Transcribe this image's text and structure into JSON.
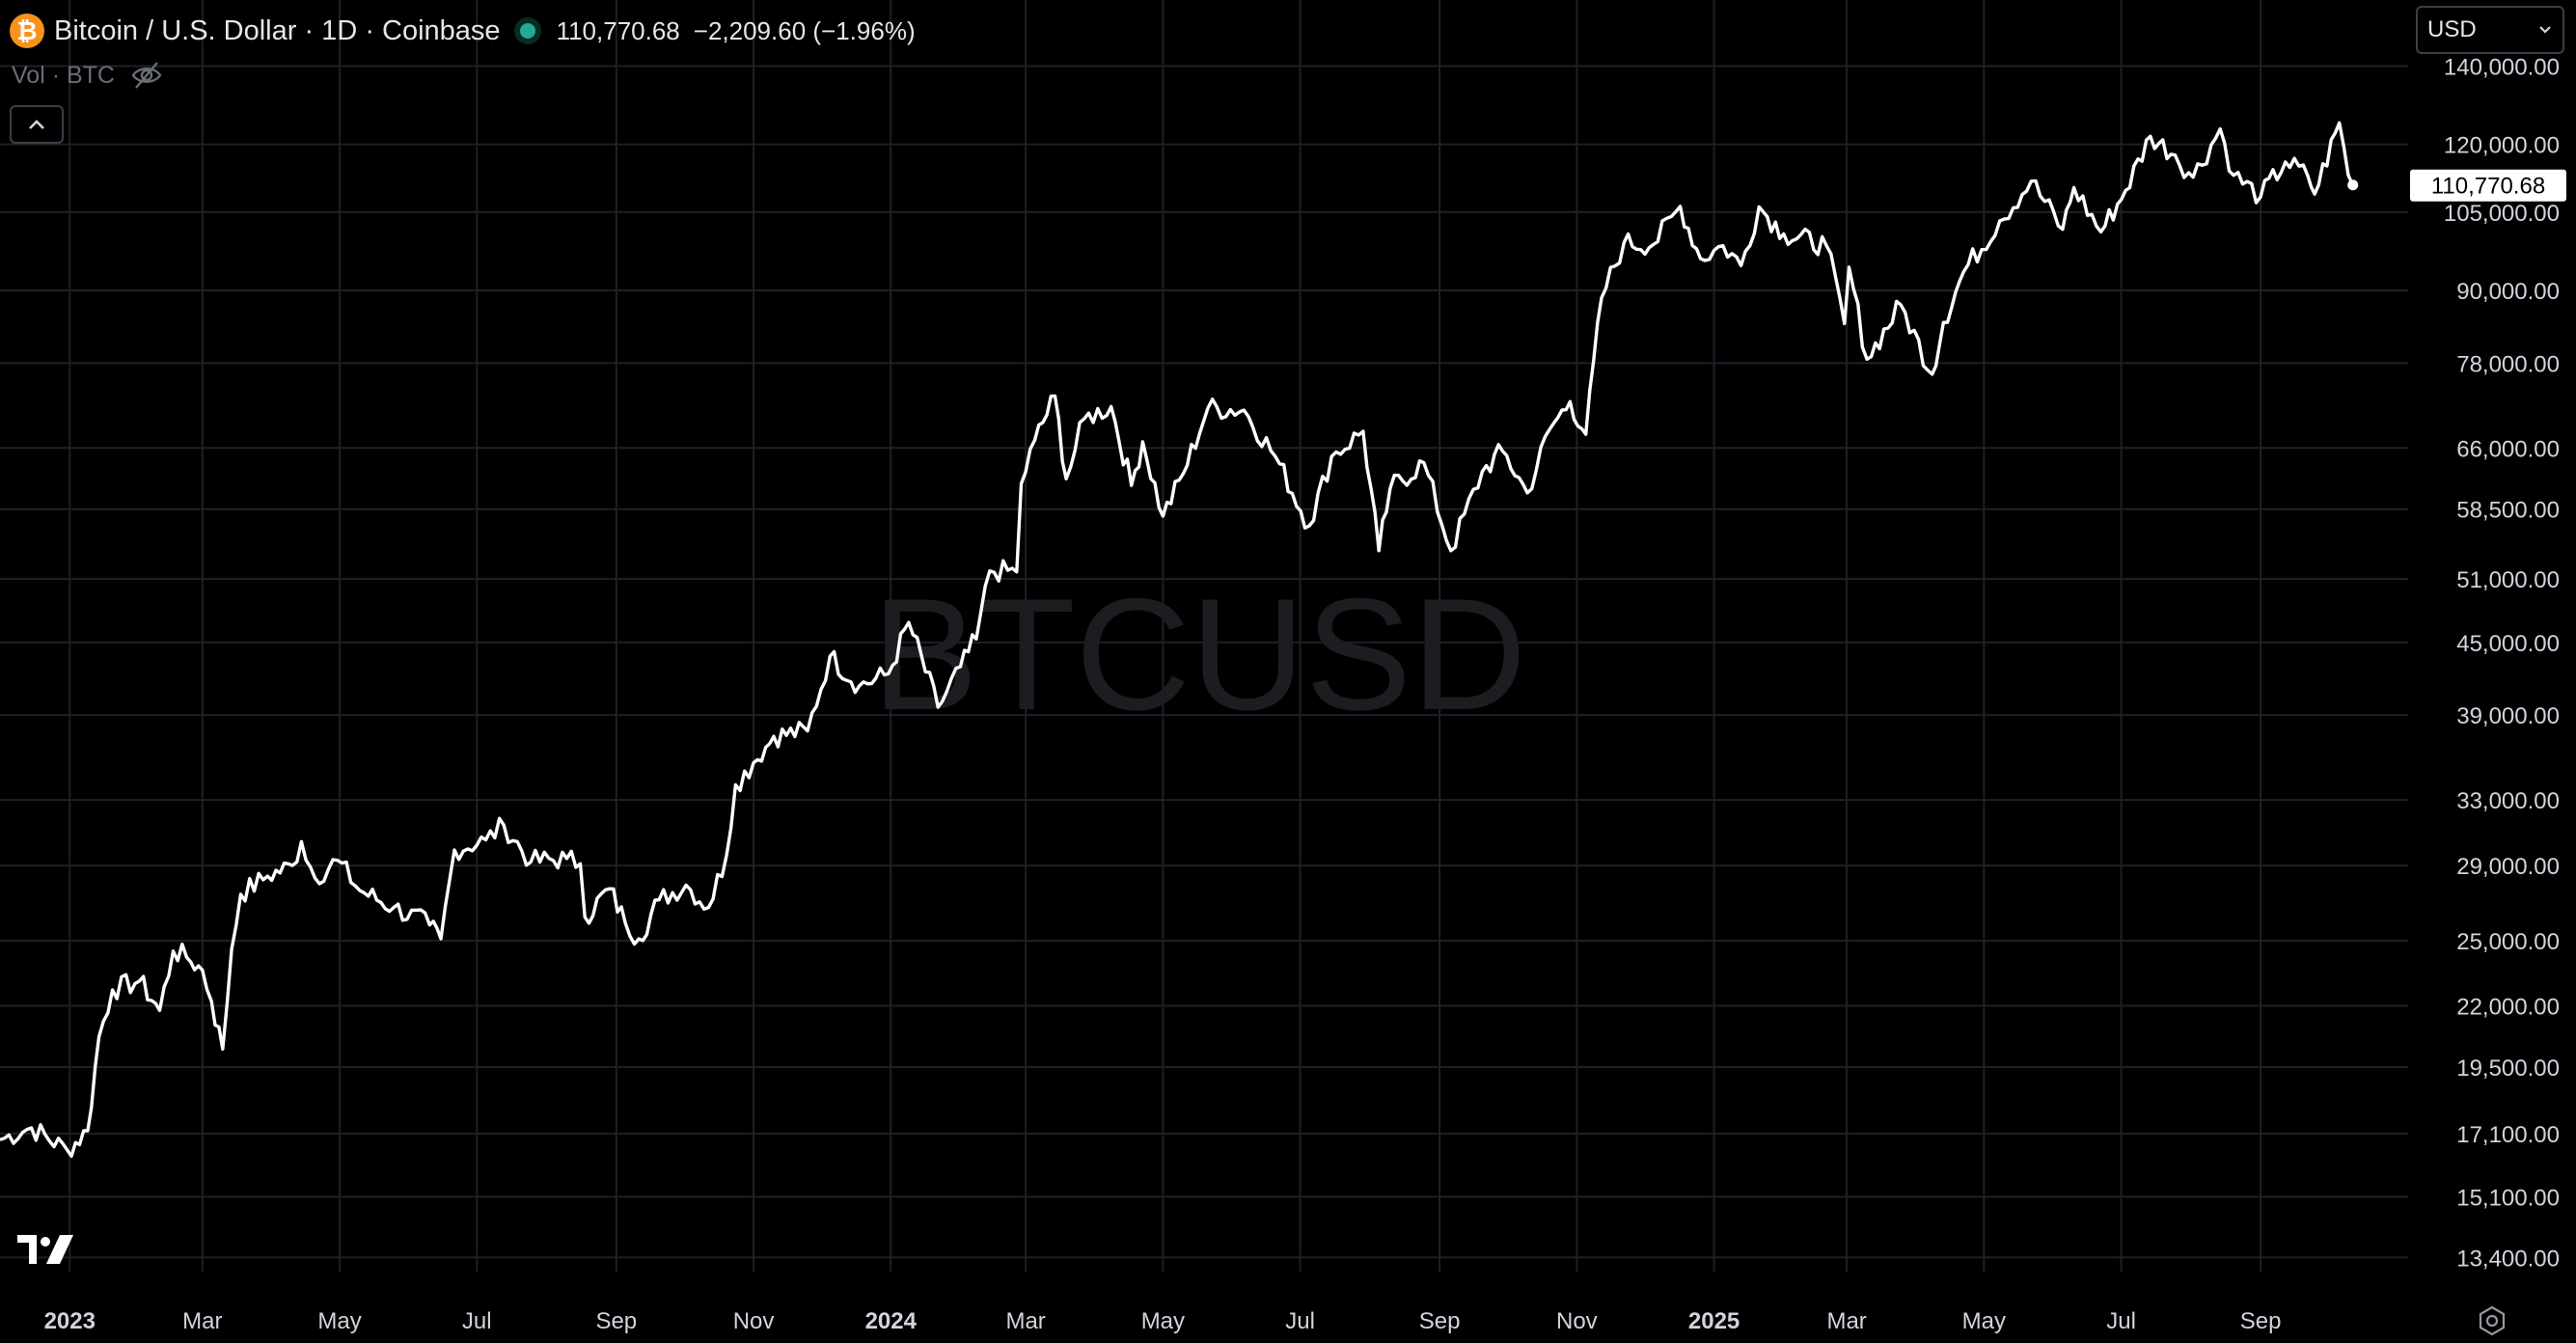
{
  "header": {
    "coin_glyph": "₿",
    "symbol_title": "Bitcoin / U.S. Dollar · 1D · Coinbase",
    "last_price": "110,770.68",
    "change": "−2,209.60 (−1.96%)",
    "vol_label": "Vol · BTC",
    "currency": "USD",
    "status_color": "#22ab94",
    "coin_color": "#f7931a"
  },
  "watermark": "BTCUSD",
  "price_label": "110,770.68",
  "icons": [
    "bitcoin-coin-icon",
    "live-status-dot-icon",
    "eye-hidden-icon",
    "chevron-up-icon",
    "chevron-down-icon",
    "tradingview-logo-icon",
    "gear-icon"
  ],
  "chart_data": {
    "type": "line",
    "series": [
      {
        "points": [
          [
            "2022-12-01",
            16900
          ],
          [
            "2022-12-15",
            17300
          ],
          [
            "2022-12-31",
            16550
          ],
          [
            "2023-01-09",
            17200
          ],
          [
            "2023-01-14",
            20700
          ],
          [
            "2023-01-20",
            22700
          ],
          [
            "2023-02-01",
            23100
          ],
          [
            "2023-02-10",
            21800
          ],
          [
            "2023-02-16",
            24500
          ],
          [
            "2023-02-22",
            24200
          ],
          [
            "2023-03-01",
            23600
          ],
          [
            "2023-03-05",
            22200
          ],
          [
            "2023-03-10",
            20200
          ],
          [
            "2023-03-14",
            24600
          ],
          [
            "2023-03-18",
            27400
          ],
          [
            "2023-03-30",
            28400
          ],
          [
            "2023-04-10",
            29000
          ],
          [
            "2023-04-14",
            30400
          ],
          [
            "2023-04-20",
            28300
          ],
          [
            "2023-04-30",
            29300
          ],
          [
            "2023-05-10",
            27600
          ],
          [
            "2023-05-25",
            26700
          ],
          [
            "2023-06-10",
            25800
          ],
          [
            "2023-06-15",
            25100
          ],
          [
            "2023-06-21",
            29900
          ],
          [
            "2023-07-05",
            30500
          ],
          [
            "2023-07-13",
            31400
          ],
          [
            "2023-07-25",
            29200
          ],
          [
            "2023-08-10",
            29400
          ],
          [
            "2023-08-16",
            29100
          ],
          [
            "2023-08-18",
            26200
          ],
          [
            "2023-08-29",
            27700
          ],
          [
            "2023-09-05",
            25900
          ],
          [
            "2023-09-11",
            25100
          ],
          [
            "2023-09-20",
            27100
          ],
          [
            "2023-10-02",
            27900
          ],
          [
            "2023-10-12",
            26700
          ],
          [
            "2023-10-20",
            29600
          ],
          [
            "2023-10-24",
            34000
          ],
          [
            "2023-11-01",
            35500
          ],
          [
            "2023-11-10",
            37400
          ],
          [
            "2023-11-25",
            37800
          ],
          [
            "2023-12-05",
            43800
          ],
          [
            "2023-12-18",
            41300
          ],
          [
            "2023-12-31",
            42300
          ],
          [
            "2024-01-09",
            46800
          ],
          [
            "2024-01-22",
            39600
          ],
          [
            "2024-02-01",
            42900
          ],
          [
            "2024-02-08",
            45300
          ],
          [
            "2024-02-14",
            51800
          ],
          [
            "2024-02-26",
            51700
          ],
          [
            "2024-02-28",
            61500
          ],
          [
            "2024-03-05",
            67000
          ],
          [
            "2024-03-14",
            73100
          ],
          [
            "2024-03-19",
            62100
          ],
          [
            "2024-03-27",
            69900
          ],
          [
            "2024-04-08",
            71600
          ],
          [
            "2024-04-17",
            61300
          ],
          [
            "2024-04-22",
            66800
          ],
          [
            "2024-05-01",
            57700
          ],
          [
            "2024-05-10",
            62700
          ],
          [
            "2024-05-21",
            71400
          ],
          [
            "2024-06-06",
            71100
          ],
          [
            "2024-06-20",
            64900
          ],
          [
            "2024-07-05",
            56600
          ],
          [
            "2024-07-15",
            64900
          ],
          [
            "2024-07-29",
            68200
          ],
          [
            "2024-08-05",
            53900
          ],
          [
            "2024-08-10",
            60900
          ],
          [
            "2024-08-25",
            64100
          ],
          [
            "2024-09-06",
            53900
          ],
          [
            "2024-09-20",
            63000
          ],
          [
            "2024-09-29",
            65600
          ],
          [
            "2024-10-10",
            60400
          ],
          [
            "2024-10-20",
            68500
          ],
          [
            "2024-10-29",
            72300
          ],
          [
            "2024-11-05",
            67800
          ],
          [
            "2024-11-12",
            88700
          ],
          [
            "2024-11-22",
            98900
          ],
          [
            "2024-12-05",
            98500
          ],
          [
            "2024-12-17",
            106200
          ],
          [
            "2024-12-26",
            95800
          ],
          [
            "2025-01-05",
            98300
          ],
          [
            "2025-01-13",
            94500
          ],
          [
            "2025-01-21",
            106100
          ],
          [
            "2025-02-01",
            100600
          ],
          [
            "2025-02-20",
            98300
          ],
          [
            "2025-02-28",
            84300
          ],
          [
            "2025-03-02",
            94200
          ],
          [
            "2025-03-10",
            78600
          ],
          [
            "2025-03-25",
            87500
          ],
          [
            "2025-04-08",
            76300
          ],
          [
            "2025-04-13",
            84500
          ],
          [
            "2025-04-22",
            93400
          ],
          [
            "2025-05-08",
            103200
          ],
          [
            "2025-05-22",
            111600
          ],
          [
            "2025-06-05",
            101500
          ],
          [
            "2025-06-10",
            110200
          ],
          [
            "2025-06-22",
            101000
          ],
          [
            "2025-07-03",
            109600
          ],
          [
            "2025-07-14",
            121900
          ],
          [
            "2025-07-25",
            117500
          ],
          [
            "2025-08-02",
            112500
          ],
          [
            "2025-08-14",
            123700
          ],
          [
            "2025-08-20",
            112900
          ],
          [
            "2025-09-01",
            108200
          ],
          [
            "2025-09-12",
            115900
          ],
          [
            "2025-09-22",
            112700
          ],
          [
            "2025-09-25",
            108800
          ],
          [
            "2025-10-06",
            125200
          ],
          [
            "2025-10-10",
            112900
          ],
          [
            "2025-10-12",
            110770.68
          ]
        ]
      }
    ],
    "y_scale": "log",
    "ylim": [
      12500,
      145000
    ],
    "y_ticks": [
      {
        "v": 140000,
        "label": "140,000.00"
      },
      {
        "v": 120000,
        "label": "120,000.00"
      },
      {
        "v": 105000,
        "label": "105,000.00"
      },
      {
        "v": 90000,
        "label": "90,000.00"
      },
      {
        "v": 78000,
        "label": "78,000.00"
      },
      {
        "v": 66000,
        "label": "66,000.00"
      },
      {
        "v": 58500,
        "label": "58,500.00"
      },
      {
        "v": 51000,
        "label": "51,000.00"
      },
      {
        "v": 45000,
        "label": "45,000.00"
      },
      {
        "v": 39000,
        "label": "39,000.00"
      },
      {
        "v": 33000,
        "label": "33,000.00"
      },
      {
        "v": 29000,
        "label": "29,000.00"
      },
      {
        "v": 25000,
        "label": "25,000.00"
      },
      {
        "v": 22000,
        "label": "22,000.00"
      },
      {
        "v": 19500,
        "label": "19,500.00"
      },
      {
        "v": 17100,
        "label": "17,100.00"
      },
      {
        "v": 15100,
        "label": "15,100.00"
      },
      {
        "v": 13400,
        "label": "13,400.00"
      }
    ],
    "xlim": [
      "2022-12-01",
      "2025-11-03"
    ],
    "x_ticks": [
      {
        "date": "2023-01-01",
        "label": "2023",
        "bold": true
      },
      {
        "date": "2023-03-01",
        "label": "Mar"
      },
      {
        "date": "2023-05-01",
        "label": "May"
      },
      {
        "date": "2023-07-01",
        "label": "Jul"
      },
      {
        "date": "2023-09-01",
        "label": "Sep"
      },
      {
        "date": "2023-11-01",
        "label": "Nov"
      },
      {
        "date": "2024-01-01",
        "label": "2024",
        "bold": true
      },
      {
        "date": "2024-03-01",
        "label": "Mar"
      },
      {
        "date": "2024-05-01",
        "label": "May"
      },
      {
        "date": "2024-07-01",
        "label": "Jul"
      },
      {
        "date": "2024-09-01",
        "label": "Sep"
      },
      {
        "date": "2024-11-01",
        "label": "Nov"
      },
      {
        "date": "2025-01-01",
        "label": "2025",
        "bold": true
      },
      {
        "date": "2025-03-01",
        "label": "Mar"
      },
      {
        "date": "2025-05-01",
        "label": "May"
      },
      {
        "date": "2025-07-01",
        "label": "Jul"
      },
      {
        "date": "2025-09-01",
        "label": "Sep"
      }
    ],
    "grid": true,
    "colors": {
      "background": "#000000",
      "line": "#ffffff",
      "grid": "#1e2029",
      "axis_text": "#d1d4dc"
    }
  }
}
